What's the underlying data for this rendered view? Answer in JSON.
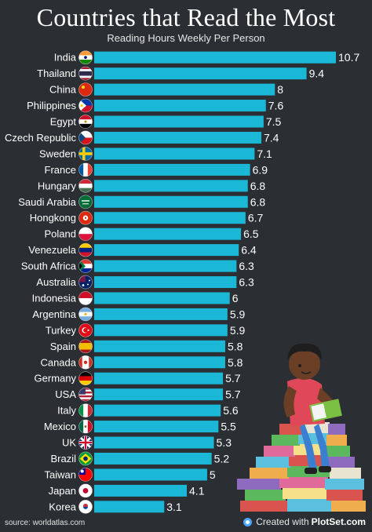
{
  "header": {
    "title": "Countries that Read the Most",
    "subtitle": "Reading Hours Weekly Per Person"
  },
  "footer": {
    "source": "source: worldatlas.com",
    "credit_prefix": "Created with",
    "credit_brand": "PlotSet.com"
  },
  "colors": {
    "bar": "#1ab8d6",
    "background": "#2b2e33",
    "text": "#ffffff"
  },
  "chart_data": {
    "type": "bar",
    "orientation": "horizontal",
    "title": "Countries that Read the Most",
    "subtitle": "Reading Hours Weekly Per Person",
    "categories": [
      "India",
      "Thailand",
      "China",
      "Philippines",
      "Egypt",
      "Czech Republic",
      "Sweden",
      "France",
      "Hungary",
      "Saudi Arabia",
      "Hongkong",
      "Poland",
      "Venezuela",
      "South Africa",
      "Australia",
      "Indonesia",
      "Argentina",
      "Turkey",
      "Spain",
      "Canada",
      "Germany",
      "USA",
      "Italy",
      "Mexico",
      "UK",
      "Brazil",
      "Taiwan",
      "Japan",
      "Korea"
    ],
    "values": [
      10.7,
      9.4,
      8,
      7.6,
      7.5,
      7.4,
      7.1,
      6.9,
      6.8,
      6.8,
      6.7,
      6.5,
      6.4,
      6.3,
      6.3,
      6,
      5.9,
      5.9,
      5.8,
      5.8,
      5.7,
      5.7,
      5.6,
      5.5,
      5.3,
      5.2,
      5,
      4.1,
      3.1
    ],
    "value_labels": [
      "10.7",
      "9.4",
      "8",
      "7.6",
      "7.5",
      "7.4",
      "7.1",
      "6.9",
      "6.8",
      "6.8",
      "6.7",
      "6.5",
      "6.4",
      "6.3",
      "6.3",
      "6",
      "5.9",
      "5.9",
      "5.8",
      "5.8",
      "5.7",
      "5.7",
      "5.6",
      "5.5",
      "5.3",
      "5.2",
      "5",
      "4.1",
      "3.1"
    ],
    "flag_icons": [
      "flag-india-icon",
      "flag-thailand-icon",
      "flag-china-icon",
      "flag-philippines-icon",
      "flag-egypt-icon",
      "flag-czech-republic-icon",
      "flag-sweden-icon",
      "flag-france-icon",
      "flag-hungary-icon",
      "flag-saudi-arabia-icon",
      "flag-hongkong-icon",
      "flag-poland-icon",
      "flag-venezuela-icon",
      "flag-south-africa-icon",
      "flag-australia-icon",
      "flag-indonesia-icon",
      "flag-argentina-icon",
      "flag-turkey-icon",
      "flag-spain-icon",
      "flag-canada-icon",
      "flag-germany-icon",
      "flag-usa-icon",
      "flag-italy-icon",
      "flag-mexico-icon",
      "flag-uk-icon",
      "flag-brazil-icon",
      "flag-taiwan-icon",
      "flag-japan-icon",
      "flag-korea-icon"
    ],
    "xlim": [
      0,
      10.7
    ],
    "grid": false,
    "legend": "none"
  }
}
